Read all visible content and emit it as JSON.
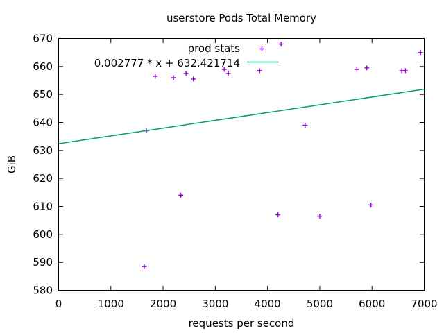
{
  "window": {
    "background": "#ffffff"
  },
  "colors": {
    "axis": "#000000",
    "points": "#9400d3",
    "fit_line": "#009e73",
    "text": "#000000"
  },
  "chart_data": {
    "type": "scatter",
    "title": "userstore Pods Total Memory",
    "xlabel": "requests per second",
    "ylabel": "GiB",
    "xlim": [
      0,
      7000
    ],
    "ylim": [
      580,
      670
    ],
    "xticks": [
      0,
      1000,
      2000,
      3000,
      4000,
      5000,
      6000,
      7000
    ],
    "yticks": [
      580,
      590,
      600,
      610,
      620,
      630,
      640,
      650,
      660,
      670
    ],
    "grid": false,
    "legend_position": "top-right-inside",
    "series": [
      {
        "name": "prod stats",
        "type": "scatter",
        "marker": "plus",
        "color": "#9400d3",
        "points": [
          [
            1640,
            588.5
          ],
          [
            1680,
            637.0
          ],
          [
            1850,
            656.5
          ],
          [
            2200,
            656.0
          ],
          [
            2340,
            614.0
          ],
          [
            2440,
            657.5
          ],
          [
            2580,
            655.5
          ],
          [
            3170,
            659.0
          ],
          [
            3250,
            657.5
          ],
          [
            3850,
            658.5
          ],
          [
            4200,
            607.0
          ],
          [
            4260,
            668.0
          ],
          [
            4720,
            639.0
          ],
          [
            5000,
            606.5
          ],
          [
            5710,
            659.0
          ],
          [
            5900,
            659.5
          ],
          [
            5980,
            610.5
          ],
          [
            6570,
            658.5
          ],
          [
            6640,
            658.5
          ],
          [
            6930,
            665.0
          ]
        ]
      },
      {
        "name": "0.002777 * x + 632.421714",
        "type": "line",
        "color": "#009e73",
        "slope": 0.002777,
        "intercept": 632.421714
      }
    ]
  }
}
